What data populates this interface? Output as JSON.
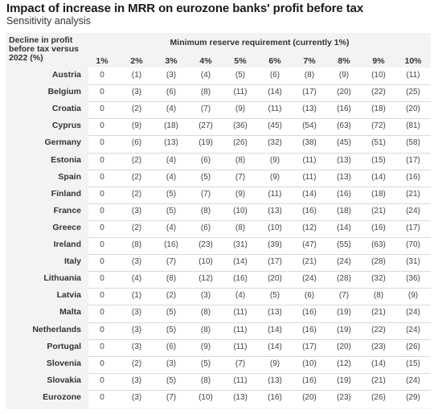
{
  "title": "Impact of increase in MRR on eurozone banks' profit before tax",
  "subtitle": "Sensitivity analysis",
  "chart_data": {
    "type": "table",
    "title": "Impact of increase in MRR on eurozone banks' profit before tax",
    "subtitle": "Sensitivity analysis",
    "row_header": "Decline in profit before tax versus 2022 (%)",
    "column_group_header": "Minimum reserve requirement (currently 1%)",
    "columns": [
      "1%",
      "2%",
      "3%",
      "4%",
      "5%",
      "6%",
      "7%",
      "8%",
      "9%",
      "10%"
    ],
    "rows": [
      {
        "label": "Austria",
        "values": [
          "0",
          "(1)",
          "(3)",
          "(4)",
          "(5)",
          "(6)",
          "(8)",
          "(9)",
          "(10)",
          "(11)"
        ]
      },
      {
        "label": "Belgium",
        "values": [
          "0",
          "(3)",
          "(6)",
          "(8)",
          "(11)",
          "(14)",
          "(17)",
          "(20)",
          "(22)",
          "(25)"
        ]
      },
      {
        "label": "Croatia",
        "values": [
          "0",
          "(2)",
          "(4)",
          "(7)",
          "(9)",
          "(11)",
          "(13)",
          "(16)",
          "(18)",
          "(20)"
        ]
      },
      {
        "label": "Cyprus",
        "values": [
          "0",
          "(9)",
          "(18)",
          "(27)",
          "(36)",
          "(45)",
          "(54)",
          "(63)",
          "(72)",
          "(81)"
        ]
      },
      {
        "label": "Germany",
        "values": [
          "0",
          "(6)",
          "(13)",
          "(19)",
          "(26)",
          "(32)",
          "(38)",
          "(45)",
          "(51)",
          "(58)"
        ]
      },
      {
        "label": "Estonia",
        "values": [
          "0",
          "(2)",
          "(4)",
          "(6)",
          "(8)",
          "(9)",
          "(11)",
          "(13)",
          "(15)",
          "(17)"
        ]
      },
      {
        "label": "Spain",
        "values": [
          "0",
          "(2)",
          "(4)",
          "(5)",
          "(7)",
          "(9)",
          "(11)",
          "(13)",
          "(14)",
          "(16)"
        ]
      },
      {
        "label": "Finland",
        "values": [
          "0",
          "(2)",
          "(5)",
          "(7)",
          "(9)",
          "(11)",
          "(14)",
          "(16)",
          "(18)",
          "(21)"
        ]
      },
      {
        "label": "France",
        "values": [
          "0",
          "(3)",
          "(5)",
          "(8)",
          "(10)",
          "(13)",
          "(16)",
          "(18)",
          "(21)",
          "(24)"
        ]
      },
      {
        "label": "Greece",
        "values": [
          "0",
          "(2)",
          "(4)",
          "(6)",
          "(8)",
          "(10)",
          "(12)",
          "(14)",
          "(16)",
          "(17)"
        ]
      },
      {
        "label": "Ireland",
        "values": [
          "0",
          "(8)",
          "(16)",
          "(23)",
          "(31)",
          "(39)",
          "(47)",
          "(55)",
          "(63)",
          "(70)"
        ]
      },
      {
        "label": "Italy",
        "values": [
          "0",
          "(3)",
          "(7)",
          "(10)",
          "(14)",
          "(17)",
          "(21)",
          "(24)",
          "(28)",
          "(31)"
        ]
      },
      {
        "label": "Lithuania",
        "values": [
          "0",
          "(4)",
          "(8)",
          "(12)",
          "(16)",
          "(20)",
          "(24)",
          "(28)",
          "(32)",
          "(36)"
        ]
      },
      {
        "label": "Latvia",
        "values": [
          "0",
          "(1)",
          "(2)",
          "(3)",
          "(4)",
          "(5)",
          "(6)",
          "(7)",
          "(8)",
          "(9)"
        ]
      },
      {
        "label": "Malta",
        "values": [
          "0",
          "(3)",
          "(5)",
          "(8)",
          "(11)",
          "(13)",
          "(16)",
          "(19)",
          "(21)",
          "(24)"
        ]
      },
      {
        "label": "Netherlands",
        "values": [
          "0",
          "(3)",
          "(5)",
          "(8)",
          "(11)",
          "(14)",
          "(16)",
          "(19)",
          "(22)",
          "(24)"
        ]
      },
      {
        "label": "Portugal",
        "values": [
          "0",
          "(3)",
          "(6)",
          "(9)",
          "(11)",
          "(14)",
          "(17)",
          "(20)",
          "(23)",
          "(26)"
        ]
      },
      {
        "label": "Slovenia",
        "values": [
          "0",
          "(2)",
          "(3)",
          "(5)",
          "(7)",
          "(9)",
          "(10)",
          "(12)",
          "(14)",
          "(15)"
        ]
      },
      {
        "label": "Slovakia",
        "values": [
          "0",
          "(3)",
          "(5)",
          "(8)",
          "(11)",
          "(13)",
          "(16)",
          "(19)",
          "(21)",
          "(24)"
        ]
      },
      {
        "label": "Eurozone",
        "values": [
          "0",
          "(3)",
          "(7)",
          "(10)",
          "(13)",
          "(16)",
          "(20)",
          "(23)",
          "(26)",
          "(29)"
        ]
      }
    ]
  },
  "colors": {
    "panel_background": "#f1f3f4",
    "cell_background": "#ffffff",
    "row_separator": "#d7dadc",
    "text": "#333333"
  }
}
